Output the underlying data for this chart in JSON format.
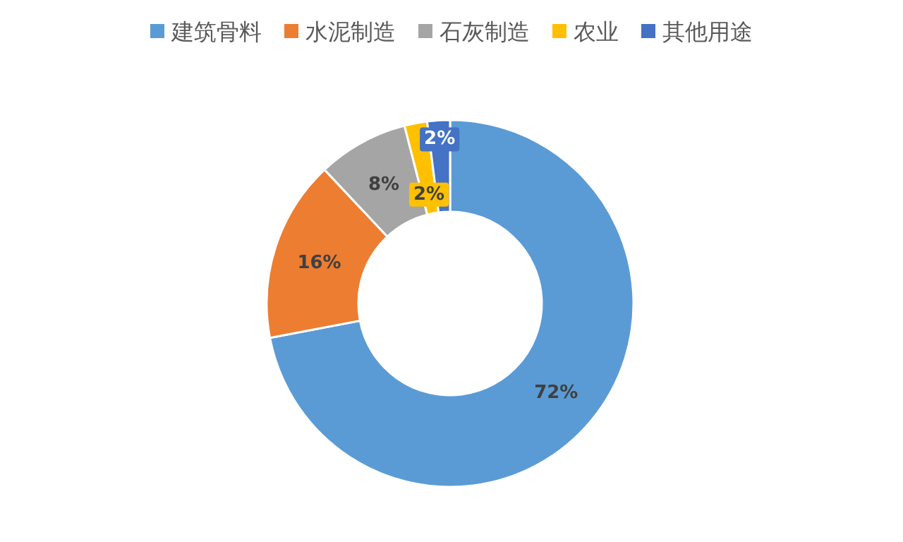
{
  "chart_data": {
    "type": "donut",
    "categories": [
      "建筑骨料",
      "水泥制造",
      "石灰制造",
      "农业",
      "其他用途"
    ],
    "values": [
      72,
      16,
      8,
      2,
      2
    ],
    "colors": [
      "#5b9bd5",
      "#ed7d31",
      "#a5a5a5",
      "#ffc000",
      "#4472c4"
    ],
    "value_labels": [
      "72%",
      "16%",
      "8%",
      "2%",
      "2%"
    ],
    "legend": "top"
  }
}
